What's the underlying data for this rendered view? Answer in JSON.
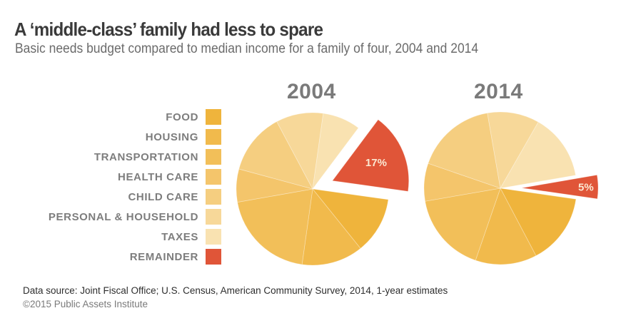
{
  "chart_data": {
    "type": "pie",
    "title": "A ‘middle-class’ family had less to spare",
    "subtitle": "Basic needs budget compared to median income for a family of four, 2004 and 2014",
    "legend_position": "left",
    "categories": [
      "FOOD",
      "HOUSING",
      "TRANSPORTATION",
      "HEALTH CARE",
      "CHILD CARE",
      "PERSONAL & HOUSEHOLD",
      "TAXES",
      "REMAINDER"
    ],
    "colors": [
      "#EFB43C",
      "#F1BA4C",
      "#F2BF59",
      "#F4C56B",
      "#F5CE80",
      "#F7D899",
      "#F9E2B1",
      "#E05538"
    ],
    "pies": [
      {
        "name": "2004",
        "values": [
          12,
          13,
          20,
          7,
          13,
          10,
          8,
          17
        ],
        "labeled_slice": "REMAINDER",
        "label": "17%",
        "exploded_slice": "REMAINDER"
      },
      {
        "name": "2014",
        "values": [
          15,
          13,
          17,
          8,
          17,
          11,
          14,
          5
        ],
        "labeled_slice": "REMAINDER",
        "label": "5%",
        "exploded_slice": "REMAINDER"
      }
    ]
  },
  "footer": {
    "source": "Data source: Joint Fiscal Office; U.S. Census, American Community Survey, 2014, 1-year estimates",
    "copyright": "©2015 Public Assets Institute"
  }
}
